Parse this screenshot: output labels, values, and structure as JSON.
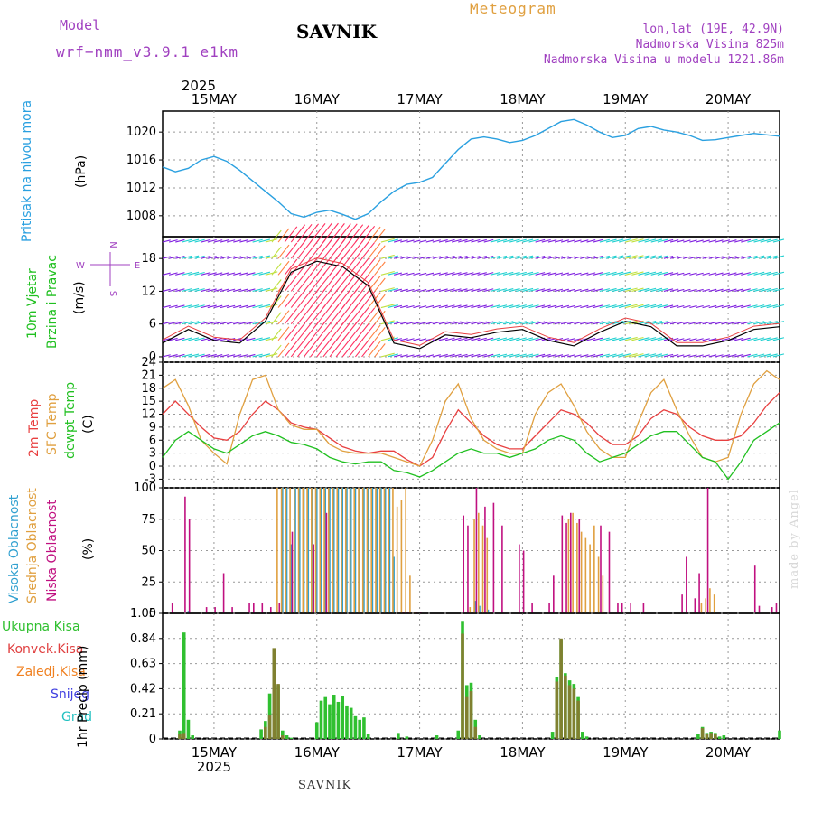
{
  "header": {
    "model_label": "Model",
    "model_name": "wrf−nmm_v3.9.1  e1km",
    "title": "SAVNIK",
    "meteogram_label": "Meteogram",
    "lonlat": "lon,lat (19E, 42.9N)",
    "elevation": "Nadmorska Visina 825m",
    "model_elevation": "Nadmorska Visina u modelu 1221.86m"
  },
  "footer": {
    "station": "SAVNIK",
    "credit": "made by Angel"
  },
  "colors": {
    "pressure": "#2aa0e0",
    "temp2m": "#e84040",
    "sfc": "#e0a040",
    "dewpt": "#20c020",
    "wind_label": "#20c020",
    "cloud_high": "#30a0d0",
    "cloud_mid": "#e0a040",
    "cloud_low": "#c01080",
    "precip_total": "#30c030",
    "precip_conv": "#e04040",
    "precip_frozen": "#f08020",
    "snow": "#4040e0",
    "hail": "#20c0c0"
  },
  "chart_data": [
    {
      "type": "line",
      "name": "pressure",
      "ylabel": "Pritisak na nivou mora",
      "unit": "(hPa)",
      "ylim": [
        1005,
        1023
      ],
      "yticks": [
        "1008",
        "1012",
        "1016",
        "1020"
      ],
      "x_hours": [
        0,
        3,
        6,
        9,
        12,
        15,
        18,
        21,
        24,
        27,
        30,
        33,
        36,
        39,
        42,
        45,
        48,
        51,
        54,
        57,
        60,
        63,
        66,
        69,
        72,
        75,
        78,
        81,
        84,
        87,
        90,
        93,
        96,
        99,
        102,
        105,
        108,
        111,
        114,
        117,
        120,
        123,
        126,
        129,
        132,
        135,
        138,
        141,
        144
      ],
      "values": [
        1015.0,
        1014.3,
        1014.8,
        1016.0,
        1016.5,
        1015.8,
        1014.5,
        1013.0,
        1011.5,
        1010.0,
        1008.3,
        1007.8,
        1008.5,
        1008.8,
        1008.2,
        1007.5,
        1008.3,
        1010.0,
        1011.5,
        1012.5,
        1012.8,
        1013.5,
        1015.5,
        1017.5,
        1019.0,
        1019.3,
        1019.0,
        1018.5,
        1018.8,
        1019.5,
        1020.5,
        1021.5,
        1021.8,
        1021.0,
        1020.0,
        1019.2,
        1019.5,
        1020.5,
        1020.8,
        1020.3,
        1020.0,
        1019.5,
        1018.8,
        1018.9,
        1019.2,
        1019.5,
        1019.8,
        1019.6,
        1019.4
      ]
    },
    {
      "type": "line",
      "name": "wind",
      "ylabel_top": "10m Vjetar",
      "ylabel_bottom": "Brzina i Pravac",
      "unit": "(m/s)",
      "compass": [
        "N",
        "E",
        "S",
        "W"
      ],
      "ylim": [
        -1,
        22
      ],
      "yticks": [
        "0",
        "6",
        "12",
        "18"
      ],
      "series": [
        {
          "name": "wind_speed",
          "x_hours": [
            0,
            6,
            12,
            18,
            24,
            30,
            36,
            42,
            48,
            54,
            60,
            66,
            72,
            78,
            84,
            90,
            96,
            102,
            108,
            114,
            120,
            126,
            132,
            138,
            144
          ],
          "values": [
            2.5,
            5.0,
            3.0,
            2.5,
            6.5,
            15.5,
            17.5,
            16.5,
            13.0,
            2.5,
            1.5,
            4.0,
            3.5,
            4.5,
            5.0,
            3.0,
            2.0,
            4.5,
            6.5,
            5.5,
            2.0,
            2.0,
            3.0,
            5.0,
            5.5
          ]
        }
      ]
    },
    {
      "type": "line",
      "name": "temperature",
      "ylabel_a": "2m Temp",
      "ylabel_b": "SFC Temp",
      "ylabel_c": "dewpt Temp",
      "unit": "(C)",
      "ylim": [
        -5,
        24
      ],
      "yticks": [
        "-3",
        "0",
        "3",
        "6",
        "9",
        "12",
        "15",
        "18",
        "21",
        "24"
      ],
      "x_hours": [
        0,
        3,
        6,
        9,
        12,
        15,
        18,
        21,
        24,
        27,
        30,
        33,
        36,
        39,
        42,
        45,
        48,
        51,
        54,
        57,
        60,
        63,
        66,
        69,
        72,
        75,
        78,
        81,
        84,
        87,
        90,
        93,
        96,
        99,
        102,
        105,
        108,
        111,
        114,
        117,
        120,
        123,
        126,
        129,
        132,
        135,
        138,
        141,
        144
      ],
      "series": [
        {
          "name": "2m",
          "values": [
            12,
            15,
            12,
            9,
            6.5,
            6,
            8,
            12,
            15,
            13,
            10,
            9,
            8.5,
            6.5,
            4.5,
            3.5,
            3,
            3.5,
            3.5,
            1.5,
            0,
            2,
            8,
            13,
            10,
            7,
            5,
            4,
            4,
            7,
            10,
            13,
            12,
            10,
            7,
            5,
            5,
            7,
            11,
            13,
            12,
            9,
            7,
            6,
            6,
            7,
            10,
            14,
            17
          ]
        },
        {
          "name": "sfc",
          "values": [
            18,
            20,
            14,
            6,
            3,
            0.5,
            12,
            20,
            21,
            13,
            9.5,
            8.5,
            8.5,
            5,
            3.5,
            3,
            3,
            3,
            2,
            1,
            0,
            6,
            15,
            19,
            11,
            6,
            4,
            3,
            3,
            12,
            17,
            19,
            14,
            8,
            4,
            2,
            2,
            10,
            17,
            20,
            13,
            7,
            2,
            1,
            2,
            12,
            19,
            22,
            20
          ]
        },
        {
          "name": "dewpt",
          "values": [
            2,
            6,
            8,
            6,
            4,
            3,
            5,
            7,
            8,
            7,
            5.5,
            5,
            4,
            2,
            1,
            0.5,
            1,
            1,
            -1,
            -1.5,
            -2.5,
            -1,
            1,
            3,
            4,
            3,
            3,
            2,
            3,
            4,
            6,
            7,
            6,
            3,
            1,
            2,
            3,
            5,
            7,
            8,
            8,
            5,
            2,
            1,
            -3,
            1,
            6,
            8,
            10
          ]
        }
      ]
    },
    {
      "type": "bar",
      "name": "cloud_cover",
      "ylabel_a": "Visoka Oblacnost",
      "ylabel_b": "Srednja Oblacnost",
      "ylabel_c": "Niska Oblacnost",
      "unit": "(%)",
      "ylim": [
        0,
        100
      ],
      "yticks": [
        "0",
        "25",
        "50",
        "75",
        "100"
      ],
      "series": [
        {
          "name": "high",
          "x_hours": [
            6,
            28,
            29,
            30,
            31,
            32,
            33,
            34,
            35,
            36,
            37,
            38,
            39,
            40,
            41,
            42,
            43,
            44,
            45,
            46,
            47,
            48,
            49,
            50,
            51,
            52,
            53,
            54,
            73,
            74,
            76
          ],
          "values": [
            2,
            100,
            100,
            55,
            100,
            100,
            100,
            100,
            100,
            100,
            100,
            100,
            100,
            100,
            100,
            100,
            100,
            100,
            100,
            100,
            100,
            100,
            100,
            100,
            100,
            100,
            100,
            45,
            10,
            6,
            3
          ]
        },
        {
          "name": "mid",
          "x_hours": [
            27,
            28,
            29,
            30,
            31,
            32,
            33,
            34,
            35,
            36,
            37,
            38,
            39,
            40,
            41,
            42,
            43,
            44,
            45,
            46,
            47,
            48,
            49,
            50,
            51,
            52,
            53,
            54,
            55,
            56,
            57,
            58,
            59,
            72,
            73,
            74,
            75,
            76,
            95,
            96,
            97,
            98,
            99,
            100,
            101,
            102,
            103,
            126,
            127,
            128,
            129
          ],
          "values": [
            100,
            100,
            100,
            100,
            100,
            100,
            100,
            100,
            100,
            100,
            100,
            100,
            100,
            100,
            100,
            100,
            100,
            100,
            100,
            100,
            100,
            100,
            100,
            100,
            100,
            100,
            100,
            100,
            85,
            90,
            100,
            30,
            1,
            5,
            75,
            80,
            70,
            60,
            75,
            80,
            72,
            65,
            60,
            55,
            70,
            45,
            30,
            8,
            12,
            20,
            15
          ]
        },
        {
          "name": "low",
          "x_hours": [
            2,
            5,
            6,
            10,
            12,
            14,
            16,
            20,
            21,
            23,
            25,
            27,
            30,
            35,
            38,
            56,
            57,
            59,
            60,
            70,
            71,
            73,
            75,
            77,
            79,
            83,
            84,
            86,
            90,
            91,
            93,
            94,
            95,
            97,
            102,
            104,
            106,
            107,
            109,
            112,
            121,
            122,
            124,
            125,
            127,
            138,
            139,
            142,
            143
          ],
          "values": [
            8,
            93,
            75,
            5,
            5,
            32,
            5,
            8,
            8,
            8,
            5,
            8,
            65,
            55,
            80,
            1,
            1,
            1,
            1,
            78,
            70,
            100,
            85,
            88,
            70,
            55,
            50,
            8,
            8,
            30,
            78,
            72,
            80,
            75,
            70,
            65,
            8,
            8,
            8,
            8,
            15,
            45,
            12,
            32,
            100,
            38,
            6,
            5,
            8
          ]
        }
      ]
    },
    {
      "type": "bar",
      "name": "precipitation",
      "legend": [
        "Ukupna Kisa",
        "Konvek.Kisa",
        "Zaledj.Kisa",
        "Snijeg",
        "Grad"
      ],
      "ylabel": "1hr Precip (mm)",
      "ylim": [
        0,
        1.05
      ],
      "yticks": [
        "0",
        "0.21",
        "0.42",
        "0.63",
        "0.84",
        "1.05"
      ],
      "series": [
        {
          "name": "total",
          "x_hours": [
            4,
            5,
            6,
            7,
            23,
            24,
            25,
            26,
            27,
            28,
            29,
            30,
            36,
            37,
            38,
            39,
            40,
            41,
            42,
            43,
            44,
            45,
            46,
            47,
            48,
            55,
            57,
            64,
            69,
            70,
            71,
            72,
            73,
            74,
            91,
            92,
            93,
            94,
            95,
            96,
            97,
            98,
            99,
            125,
            126,
            127,
            128,
            129,
            130,
            131,
            144
          ],
          "values": [
            0.07,
            0.89,
            0.16,
            0.03,
            0.08,
            0.15,
            0.38,
            0.74,
            0.45,
            0.07,
            0.03,
            0.01,
            0.14,
            0.32,
            0.35,
            0.29,
            0.37,
            0.31,
            0.36,
            0.28,
            0.26,
            0.19,
            0.16,
            0.18,
            0.04,
            0.05,
            0.02,
            0.03,
            0.07,
            0.98,
            0.45,
            0.47,
            0.16,
            0.03,
            0.06,
            0.52,
            0.83,
            0.55,
            0.49,
            0.46,
            0.35,
            0.06,
            0.02,
            0.04,
            0.1,
            0.05,
            0.06,
            0.05,
            0.02,
            0.03,
            0.07
          ]
        },
        {
          "name": "convective",
          "x_hours": [
            4,
            5,
            24,
            25,
            26,
            27,
            28,
            70,
            71,
            72,
            73,
            92,
            93,
            94,
            95,
            96,
            97,
            126,
            127,
            128,
            129
          ],
          "values": [
            0.04,
            0.05,
            0.1,
            0.2,
            0.76,
            0.46,
            0.03,
            0.88,
            0.35,
            0.4,
            0.1,
            0.48,
            0.84,
            0.53,
            0.45,
            0.42,
            0.32,
            0.09,
            0.04,
            0.05,
            0.04
          ]
        }
      ]
    }
  ],
  "x_axis": {
    "top_year": "2025",
    "bottom_year": "2025",
    "days": [
      "15MAY",
      "16MAY",
      "17MAY",
      "18MAY",
      "19MAY",
      "20MAY"
    ],
    "day_hours": [
      12,
      36,
      60,
      84,
      108,
      132
    ],
    "xlim_hours": [
      0,
      144
    ]
  }
}
